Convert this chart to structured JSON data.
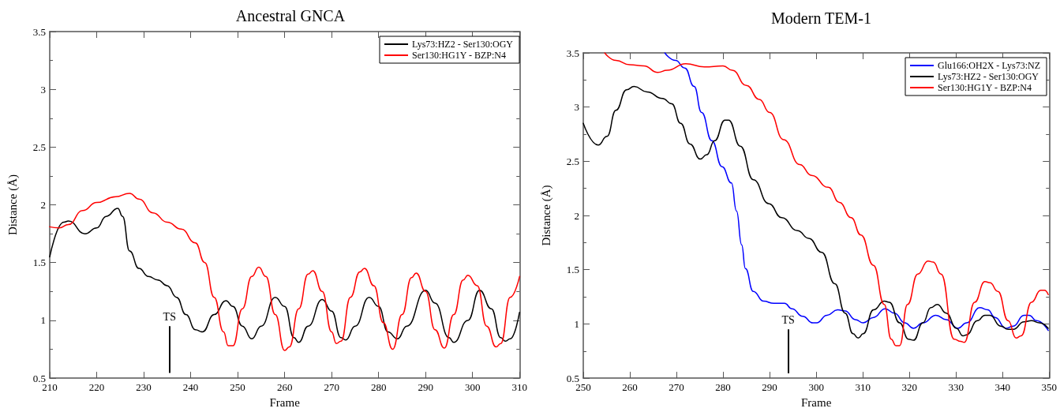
{
  "chart_data": [
    {
      "type": "line",
      "title": "Ancestral GNCA",
      "xlabel": "Frame",
      "ylabel": "Distance (Å)",
      "xlim": [
        210,
        310
      ],
      "xticks": [
        210,
        220,
        230,
        240,
        250,
        260,
        270,
        280,
        290,
        300,
        310
      ],
      "ylim": [
        0.5,
        3.5
      ],
      "yticks": [
        0.5,
        1,
        1.5,
        2,
        2.5,
        3,
        3.5
      ],
      "grid": false,
      "legend": "top right",
      "marker": "none",
      "line_style": "solid",
      "ref_lines": [
        {
          "axis": "x",
          "value": 235.5,
          "label": "TS"
        }
      ],
      "series": [
        {
          "name": "Lys73:HZ2 - Ser130:OGY",
          "color": "#000000",
          "x": [
            210,
            213,
            214,
            217.5,
            220,
            222,
            224.5,
            225.5,
            227,
            229,
            231,
            233,
            235,
            237,
            239,
            241,
            242.5,
            245,
            247.5,
            249,
            251,
            253,
            255,
            258,
            260,
            262,
            263,
            265,
            268,
            270,
            272,
            273,
            275,
            278,
            280,
            282,
            284,
            286,
            290,
            292,
            295,
            296,
            299,
            301.5,
            304,
            306,
            307,
            308,
            310
          ],
          "values": [
            1.55,
            1.85,
            1.86,
            1.75,
            1.8,
            1.9,
            1.97,
            1.9,
            1.6,
            1.45,
            1.38,
            1.35,
            1.3,
            1.2,
            1.05,
            0.92,
            0.9,
            1.05,
            1.17,
            1.12,
            0.95,
            0.84,
            0.95,
            1.2,
            1.12,
            0.85,
            0.81,
            0.95,
            1.18,
            1.08,
            0.85,
            0.83,
            0.95,
            1.2,
            1.12,
            0.9,
            0.84,
            0.95,
            1.26,
            1.15,
            0.85,
            0.81,
            1.0,
            1.26,
            1.1,
            0.85,
            0.82,
            0.84,
            1.07
          ]
        },
        {
          "name": "Ser130:HG1Y - BZP:N4",
          "color": "#ff0000",
          "x": [
            210,
            212,
            214,
            217,
            220,
            224,
            227,
            229,
            232,
            235,
            238,
            241,
            243,
            245,
            247,
            248,
            249,
            251,
            253,
            254.5,
            256,
            258,
            260,
            261,
            263,
            265,
            266,
            268,
            270,
            271,
            272,
            274,
            276,
            277,
            279,
            281,
            283,
            285,
            287,
            288,
            290,
            292,
            294,
            296,
            298,
            299,
            301,
            303,
            305,
            306,
            308,
            310
          ],
          "values": [
            1.81,
            1.8,
            1.83,
            1.95,
            2.02,
            2.07,
            2.1,
            2.05,
            1.93,
            1.85,
            1.79,
            1.67,
            1.5,
            1.2,
            0.9,
            0.78,
            0.78,
            1.1,
            1.38,
            1.46,
            1.38,
            1.05,
            0.74,
            0.77,
            1.1,
            1.4,
            1.43,
            1.25,
            0.9,
            0.8,
            0.82,
            1.2,
            1.42,
            1.45,
            1.3,
            0.98,
            0.75,
            1.05,
            1.37,
            1.41,
            1.25,
            0.92,
            0.76,
            1.05,
            1.35,
            1.39,
            1.3,
            0.95,
            0.77,
            0.8,
            1.2,
            1.38
          ]
        }
      ]
    },
    {
      "type": "line",
      "title": "Modern TEM-1",
      "xlabel": "Frame",
      "ylabel": "Distance (Å)",
      "xlim": [
        250,
        350
      ],
      "xticks": [
        250,
        260,
        270,
        280,
        290,
        300,
        310,
        320,
        330,
        340,
        350
      ],
      "ylim": [
        0.5,
        3.5
      ],
      "yticks": [
        0.5,
        1,
        1.5,
        2,
        2.5,
        3,
        3.5
      ],
      "grid": false,
      "legend": "top right",
      "marker": "none",
      "line_style": "solid",
      "ref_lines": [
        {
          "axis": "x",
          "value": 294,
          "label": "TS"
        }
      ],
      "series": [
        {
          "name": "Glu166:OH2X - Lys73:NZ",
          "color": "#0000ff",
          "x": [
            267.5,
            269.8,
            271.8,
            273.8,
            275.4,
            277.6,
            279.8,
            281.8,
            282.9,
            284,
            284.8,
            286.5,
            288.7,
            290.9,
            293.2,
            294.8,
            297.1,
            299.3,
            300.1,
            302.3,
            304.6,
            306.2,
            308.4,
            310.1,
            312.3,
            314.8,
            316.8,
            319,
            320.9,
            322.9,
            325.7,
            327.9,
            330.4,
            332.3,
            335.1,
            336.8,
            338.4,
            340.7,
            342.3,
            344.6,
            345.7,
            347.3,
            349.8
          ],
          "values": [
            3.5,
            3.43,
            3.36,
            3.19,
            2.95,
            2.69,
            2.45,
            2.3,
            2.04,
            1.73,
            1.51,
            1.3,
            1.21,
            1.19,
            1.19,
            1.14,
            1.07,
            1.01,
            1.01,
            1.08,
            1.13,
            1.12,
            1.04,
            1.01,
            1.06,
            1.14,
            1.1,
            1.01,
            0.96,
            1.01,
            1.08,
            1.04,
            0.96,
            1.01,
            1.15,
            1.13,
            1.06,
            0.96,
            0.98,
            1.08,
            1.08,
            1.03,
            0.94
          ]
        },
        {
          "name": "Lys73:HZ2 - Ser130:OGY",
          "color": "#000000",
          "x": [
            250,
            253.2,
            255.1,
            257,
            259.3,
            260.9,
            263.7,
            267,
            269,
            270.9,
            272.9,
            275.1,
            276.5,
            278.2,
            280.4,
            281.2,
            283.7,
            286.5,
            289.8,
            292.6,
            296,
            298.4,
            301.2,
            304,
            306.2,
            307.9,
            309,
            310.1,
            312.3,
            314.6,
            315.7,
            317.9,
            319.8,
            320.9,
            322.9,
            324.6,
            326,
            327.9,
            330.1,
            331.5,
            332.3,
            334.6,
            336.2,
            337.3,
            339.6,
            341.2,
            342.3,
            344.6,
            346.2,
            347.9,
            349.8
          ],
          "values": [
            2.85,
            2.65,
            2.73,
            2.97,
            3.16,
            3.19,
            3.14,
            3.08,
            3.03,
            2.85,
            2.66,
            2.52,
            2.56,
            2.69,
            2.88,
            2.88,
            2.64,
            2.33,
            2.11,
            1.98,
            1.86,
            1.79,
            1.66,
            1.37,
            1.1,
            0.91,
            0.87,
            0.91,
            1.13,
            1.21,
            1.2,
            1.01,
            0.86,
            0.85,
            1.01,
            1.15,
            1.18,
            1.1,
            0.96,
            0.89,
            0.9,
            1.03,
            1.08,
            1.08,
            0.98,
            0.95,
            0.95,
            1.02,
            1.03,
            1.01,
            0.96
          ]
        },
        {
          "name": "Ser130:HG1Y - BZP:N4",
          "color": "#ff0000",
          "x": [
            254.6,
            257,
            260,
            263,
            266,
            268,
            272,
            276,
            280,
            282,
            285,
            287.8,
            290,
            293,
            296.5,
            299,
            302.6,
            305,
            307.5,
            309.6,
            312.3,
            314.6,
            316.1,
            317.1,
            317.9,
            319.6,
            321.8,
            324,
            325.1,
            326.8,
            329.6,
            331,
            331.8,
            334,
            336.2,
            337.3,
            339,
            341.2,
            342.9,
            344,
            346.2,
            348.2,
            349,
            349.8
          ],
          "values": [
            3.5,
            3.43,
            3.39,
            3.38,
            3.32,
            3.34,
            3.4,
            3.37,
            3.38,
            3.34,
            3.2,
            3.07,
            2.95,
            2.7,
            2.47,
            2.37,
            2.26,
            2.12,
            1.98,
            1.82,
            1.54,
            1.18,
            0.86,
            0.8,
            0.8,
            1.18,
            1.46,
            1.58,
            1.57,
            1.46,
            0.86,
            0.84,
            0.83,
            1.2,
            1.39,
            1.38,
            1.3,
            1.03,
            0.87,
            0.89,
            1.2,
            1.31,
            1.31,
            1.27
          ]
        }
      ]
    }
  ]
}
